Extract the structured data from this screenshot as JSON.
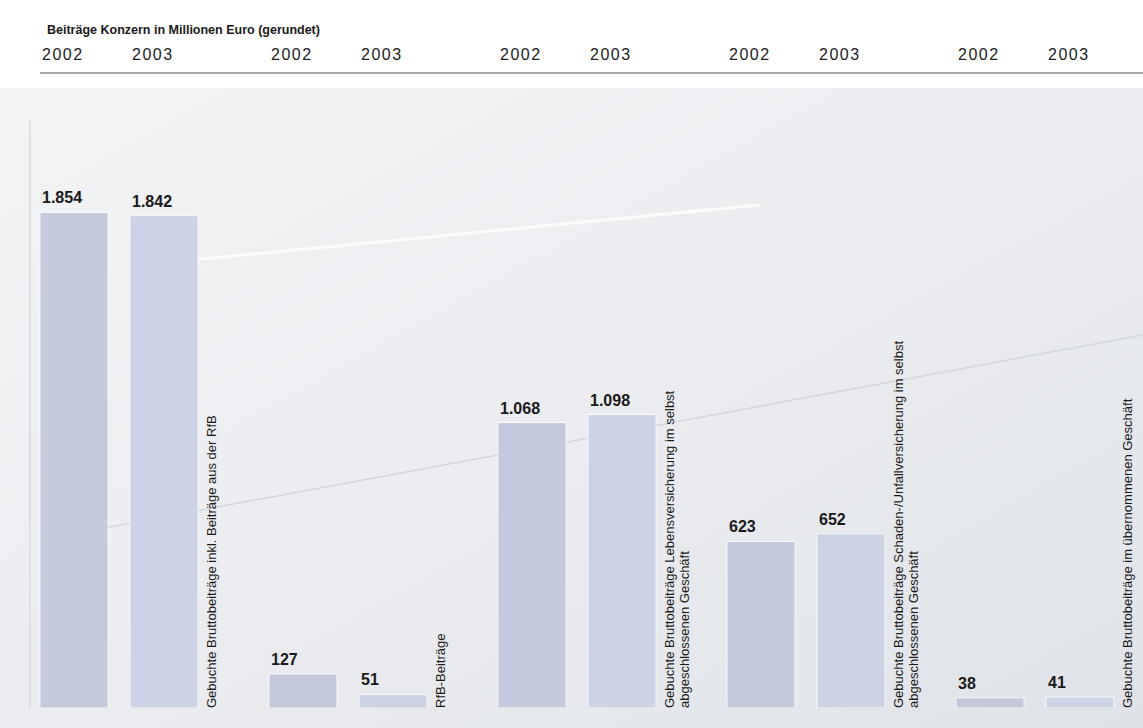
{
  "chart_data": {
    "type": "bar",
    "title": "Beiträge Konzern in Millionen Euro (gerundet)",
    "categories": [
      "Gebuchte Bruttobeiträge inkl. Beiträge aus der RfB",
      "RfB-Beiträge",
      "Gebuchte Bruttobeiträge Lebensversicherung im selbst abgeschlossenen Geschäft",
      "Gebuchte Bruttobeiträge Schaden-/Unfallversicherung im selbst abgeschlossenen Geschäft",
      "Gebuchte Bruttobeiträge im übernommenen Geschäft"
    ],
    "series": [
      {
        "name": "2002",
        "color": "#c4cadc",
        "values": [
          1854,
          127,
          1068,
          623,
          38
        ],
        "value_labels": [
          "1.854",
          "127",
          "1.068",
          "623",
          "38"
        ]
      },
      {
        "name": "2003",
        "color": "#ccd3e4",
        "values": [
          1842,
          51,
          1098,
          652,
          41
        ],
        "value_labels": [
          "1.842",
          "51",
          "1.098",
          "652",
          "41"
        ]
      }
    ],
    "ylim": [
      0,
      2200
    ],
    "yticks": [],
    "tick_labels": false,
    "data_labels": true
  }
}
